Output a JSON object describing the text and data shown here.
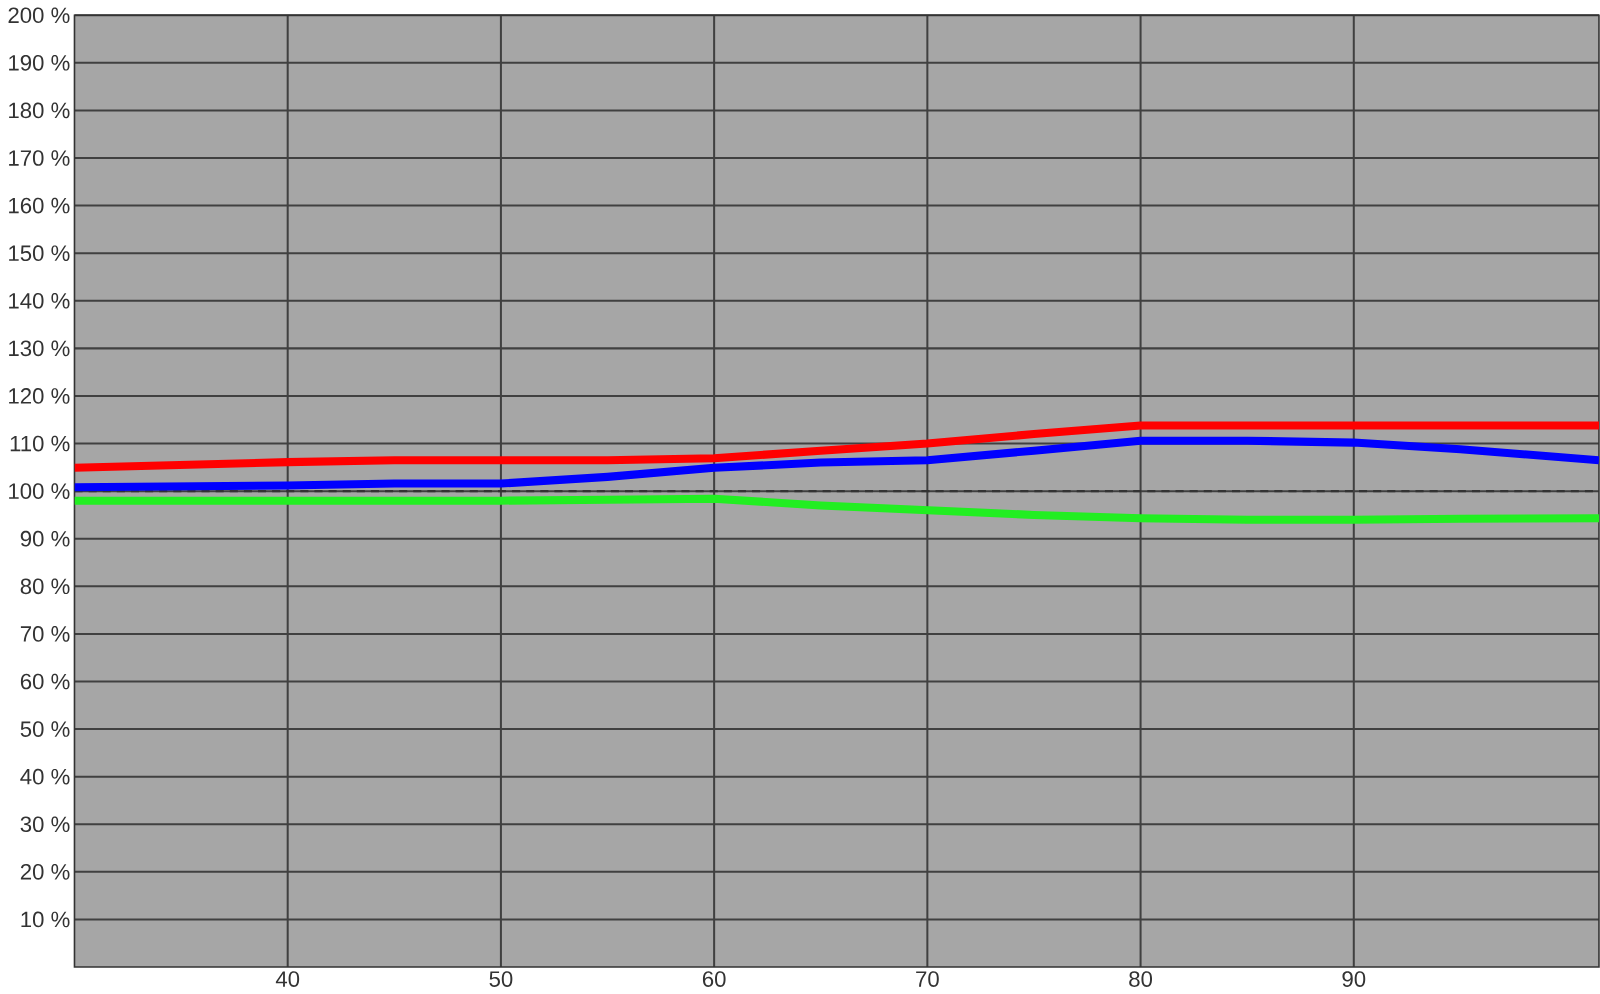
{
  "chart_data": {
    "type": "line",
    "xlim": [
      30,
      101.5
    ],
    "ylim": [
      0,
      200
    ],
    "xticks": [
      40,
      50,
      60,
      70,
      80,
      90
    ],
    "yticks": [
      {
        "value": 10,
        "label": "10 %"
      },
      {
        "value": 20,
        "label": "20 %"
      },
      {
        "value": 30,
        "label": "30 %"
      },
      {
        "value": 40,
        "label": "40 %"
      },
      {
        "value": 50,
        "label": "50 %"
      },
      {
        "value": 60,
        "label": "60 %"
      },
      {
        "value": 70,
        "label": "70 %"
      },
      {
        "value": 80,
        "label": "80 %"
      },
      {
        "value": 90,
        "label": "90 %"
      },
      {
        "value": 100,
        "label": "100 %"
      },
      {
        "value": 110,
        "label": "110 %"
      },
      {
        "value": 120,
        "label": "120 %"
      },
      {
        "value": 130,
        "label": "130 %"
      },
      {
        "value": 140,
        "label": "140 %"
      },
      {
        "value": 150,
        "label": "150 %"
      },
      {
        "value": 160,
        "label": "160 %"
      },
      {
        "value": 170,
        "label": "170 %"
      },
      {
        "value": 180,
        "label": "180 %"
      },
      {
        "value": 190,
        "label": "190 %"
      },
      {
        "value": 200,
        "label": "200 %"
      }
    ],
    "x": [
      30,
      40,
      45,
      50,
      55,
      60,
      65,
      70,
      75,
      80,
      85,
      90,
      95,
      101.5
    ],
    "series": [
      {
        "color": "#ff0000",
        "values": [
          104.9,
          106.1,
          106.5,
          106.5,
          106.5,
          106.9,
          108.5,
          110,
          112,
          113.8,
          113.8,
          113.8,
          113.8,
          113.8
        ]
      },
      {
        "color": "#0000ff",
        "values": [
          100.8,
          101.2,
          101.6,
          101.6,
          103,
          104.9,
          106,
          106.5,
          108.5,
          110.6,
          110.6,
          110.2,
          108.8,
          106.5
        ]
      },
      {
        "color": "#22ee22",
        "values": [
          98,
          98,
          98,
          98,
          98.2,
          98.4,
          97,
          96,
          95,
          94.3,
          94,
          94,
          94.2,
          94.3
        ]
      }
    ],
    "ref_lines": [
      {
        "axis": "y",
        "value": 100,
        "color": "#333333",
        "line_style": "dashed"
      }
    ],
    "grid": true,
    "marker": "none",
    "line_style": "solid"
  }
}
